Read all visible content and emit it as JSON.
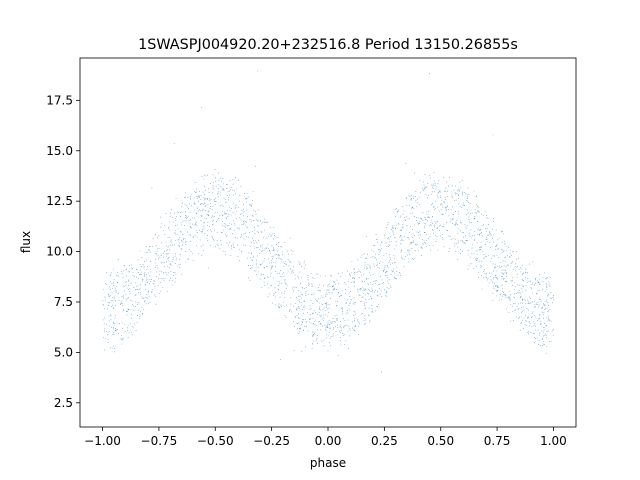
{
  "chart_data": {
    "type": "scatter",
    "title": "1SWASPJ004920.20+232516.8 Period 13150.26855s",
    "xlabel": "phase",
    "ylabel": "flux",
    "xlim": [
      -1.1,
      1.1
    ],
    "ylim": [
      1.3,
      19.6
    ],
    "xticks": [
      -1.0,
      -0.75,
      -0.5,
      -0.25,
      0.0,
      0.25,
      0.5,
      0.75,
      1.0
    ],
    "xtick_labels": [
      "−1.00",
      "−0.75",
      "−0.50",
      "−0.25",
      "0.00",
      "0.25",
      "0.50",
      "0.75",
      "1.00"
    ],
    "yticks": [
      2.5,
      5.0,
      7.5,
      10.0,
      12.5,
      15.0,
      17.5
    ],
    "ytick_labels": [
      "2.5",
      "5.0",
      "7.5",
      "10.0",
      "12.5",
      "15.0",
      "17.5"
    ],
    "grid": false,
    "marker_color": "#1f77b4",
    "series": [
      {
        "name": "",
        "x_range": [
          -1.0,
          1.0
        ],
        "baseline_flux": 9.5,
        "amplitude": 2.5,
        "minima_phase": [
          -1.0,
          0.0,
          1.0
        ],
        "maxima_phase": [
          -0.5,
          0.5
        ],
        "max_flux": 12.0,
        "min_flux": 7.0,
        "scatter_sd": 0.9,
        "n_points": 26000
      }
    ]
  }
}
